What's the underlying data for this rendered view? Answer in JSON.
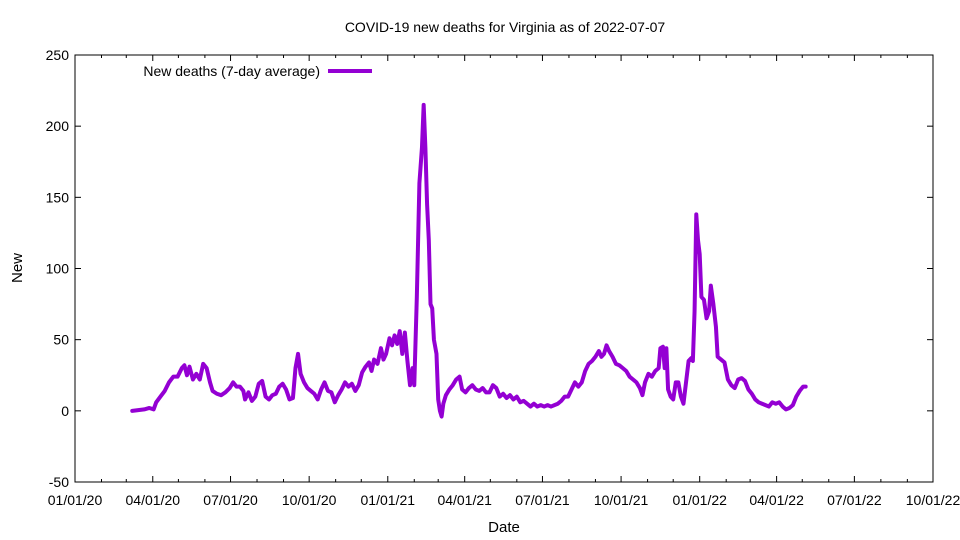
{
  "chart_data": {
    "type": "line",
    "title": "COVID-19 new deaths for Virginia as of 2022-07-07",
    "xlabel": "Date",
    "ylabel": "New",
    "ylim": [
      -50,
      250
    ],
    "yticks": [
      -50,
      0,
      50,
      100,
      150,
      200,
      250
    ],
    "xlim": [
      "2020-01-01",
      "2022-10-01"
    ],
    "xticks": [
      {
        "date": "2020-01-01",
        "label": "01/01/20"
      },
      {
        "date": "2020-04-01",
        "label": "04/01/20"
      },
      {
        "date": "2020-07-01",
        "label": "07/01/20"
      },
      {
        "date": "2020-10-01",
        "label": "10/01/20"
      },
      {
        "date": "2021-01-01",
        "label": "01/01/21"
      },
      {
        "date": "2021-04-01",
        "label": "04/01/21"
      },
      {
        "date": "2021-07-01",
        "label": "07/01/21"
      },
      {
        "date": "2021-10-01",
        "label": "10/01/21"
      },
      {
        "date": "2022-01-01",
        "label": "01/01/22"
      },
      {
        "date": "2022-04-01",
        "label": "04/01/22"
      },
      {
        "date": "2022-07-01",
        "label": "07/01/22"
      },
      {
        "date": "2022-10-01",
        "label": "10/01/22"
      }
    ],
    "legend_position": "top-left",
    "grid": false,
    "series": [
      {
        "name": "New deaths (7-day average)",
        "color": "#9400d3",
        "points": [
          [
            "2020-03-08",
            0
          ],
          [
            "2020-03-15",
            0.5
          ],
          [
            "2020-03-22",
            1
          ],
          [
            "2020-03-28",
            2
          ],
          [
            "2020-04-02",
            1
          ],
          [
            "2020-04-05",
            6
          ],
          [
            "2020-04-10",
            10
          ],
          [
            "2020-04-15",
            14
          ],
          [
            "2020-04-20",
            20
          ],
          [
            "2020-04-25",
            24
          ],
          [
            "2020-04-30",
            24
          ],
          [
            "2020-05-05",
            30
          ],
          [
            "2020-05-08",
            32
          ],
          [
            "2020-05-11",
            25
          ],
          [
            "2020-05-14",
            31
          ],
          [
            "2020-05-18",
            22
          ],
          [
            "2020-05-22",
            26
          ],
          [
            "2020-05-26",
            22
          ],
          [
            "2020-05-30",
            33
          ],
          [
            "2020-06-03",
            30
          ],
          [
            "2020-06-07",
            20
          ],
          [
            "2020-06-10",
            14
          ],
          [
            "2020-06-15",
            12
          ],
          [
            "2020-06-20",
            11
          ],
          [
            "2020-06-25",
            13
          ],
          [
            "2020-06-30",
            16
          ],
          [
            "2020-07-04",
            20
          ],
          [
            "2020-07-08",
            17
          ],
          [
            "2020-07-12",
            17
          ],
          [
            "2020-07-16",
            14
          ],
          [
            "2020-07-18",
            8
          ],
          [
            "2020-07-22",
            13
          ],
          [
            "2020-07-26",
            7
          ],
          [
            "2020-07-30",
            10
          ],
          [
            "2020-08-03",
            19
          ],
          [
            "2020-08-07",
            21
          ],
          [
            "2020-08-11",
            10
          ],
          [
            "2020-08-15",
            8
          ],
          [
            "2020-08-19",
            11
          ],
          [
            "2020-08-23",
            12
          ],
          [
            "2020-08-27",
            17
          ],
          [
            "2020-08-31",
            19
          ],
          [
            "2020-09-04",
            15
          ],
          [
            "2020-09-08",
            8
          ],
          [
            "2020-09-12",
            9
          ],
          [
            "2020-09-15",
            30
          ],
          [
            "2020-09-18",
            40
          ],
          [
            "2020-09-21",
            26
          ],
          [
            "2020-09-25",
            20
          ],
          [
            "2020-09-29",
            16
          ],
          [
            "2020-10-03",
            14
          ],
          [
            "2020-10-07",
            12
          ],
          [
            "2020-10-11",
            8
          ],
          [
            "2020-10-15",
            15
          ],
          [
            "2020-10-19",
            20
          ],
          [
            "2020-10-23",
            14
          ],
          [
            "2020-10-27",
            13
          ],
          [
            "2020-10-31",
            6
          ],
          [
            "2020-11-04",
            11
          ],
          [
            "2020-11-08",
            15
          ],
          [
            "2020-11-12",
            20
          ],
          [
            "2020-11-16",
            17
          ],
          [
            "2020-11-20",
            19
          ],
          [
            "2020-11-24",
            14
          ],
          [
            "2020-11-28",
            18
          ],
          [
            "2020-12-02",
            27
          ],
          [
            "2020-12-06",
            31
          ],
          [
            "2020-12-10",
            34
          ],
          [
            "2020-12-13",
            28
          ],
          [
            "2020-12-16",
            36
          ],
          [
            "2020-12-20",
            33
          ],
          [
            "2020-12-24",
            44
          ],
          [
            "2020-12-27",
            36
          ],
          [
            "2020-12-30",
            40
          ],
          [
            "2021-01-03",
            51
          ],
          [
            "2021-01-06",
            46
          ],
          [
            "2021-01-09",
            53
          ],
          [
            "2021-01-12",
            47
          ],
          [
            "2021-01-15",
            56
          ],
          [
            "2021-01-18",
            40
          ],
          [
            "2021-01-21",
            55
          ],
          [
            "2021-01-24",
            35
          ],
          [
            "2021-01-27",
            18
          ],
          [
            "2021-01-30",
            30
          ],
          [
            "2021-02-01",
            18
          ],
          [
            "2021-02-04",
            80
          ],
          [
            "2021-02-07",
            160
          ],
          [
            "2021-02-10",
            185
          ],
          [
            "2021-02-12",
            215
          ],
          [
            "2021-02-14",
            185
          ],
          [
            "2021-02-16",
            145
          ],
          [
            "2021-02-18",
            120
          ],
          [
            "2021-02-20",
            75
          ],
          [
            "2021-02-22",
            72
          ],
          [
            "2021-02-24",
            50
          ],
          [
            "2021-02-27",
            40
          ],
          [
            "2021-03-01",
            8
          ],
          [
            "2021-03-03",
            0
          ],
          [
            "2021-03-05",
            -4
          ],
          [
            "2021-03-07",
            5
          ],
          [
            "2021-03-10",
            11
          ],
          [
            "2021-03-14",
            15
          ],
          [
            "2021-03-18",
            18
          ],
          [
            "2021-03-22",
            22
          ],
          [
            "2021-03-26",
            24
          ],
          [
            "2021-03-29",
            15
          ],
          [
            "2021-04-02",
            13
          ],
          [
            "2021-04-06",
            16
          ],
          [
            "2021-04-10",
            18
          ],
          [
            "2021-04-14",
            15
          ],
          [
            "2021-04-18",
            14
          ],
          [
            "2021-04-22",
            16
          ],
          [
            "2021-04-26",
            13
          ],
          [
            "2021-04-30",
            13
          ],
          [
            "2021-05-04",
            18
          ],
          [
            "2021-05-08",
            16
          ],
          [
            "2021-05-12",
            10
          ],
          [
            "2021-05-16",
            12
          ],
          [
            "2021-05-20",
            9
          ],
          [
            "2021-05-24",
            11
          ],
          [
            "2021-05-28",
            8
          ],
          [
            "2021-06-01",
            10
          ],
          [
            "2021-06-05",
            6
          ],
          [
            "2021-06-09",
            7
          ],
          [
            "2021-06-13",
            5
          ],
          [
            "2021-06-17",
            3
          ],
          [
            "2021-06-21",
            5
          ],
          [
            "2021-06-25",
            3
          ],
          [
            "2021-06-29",
            4
          ],
          [
            "2021-07-03",
            3
          ],
          [
            "2021-07-07",
            4
          ],
          [
            "2021-07-11",
            3
          ],
          [
            "2021-07-15",
            4
          ],
          [
            "2021-07-19",
            5
          ],
          [
            "2021-07-23",
            7
          ],
          [
            "2021-07-27",
            10
          ],
          [
            "2021-07-31",
            10
          ],
          [
            "2021-08-04",
            15
          ],
          [
            "2021-08-08",
            20
          ],
          [
            "2021-08-12",
            17
          ],
          [
            "2021-08-16",
            20
          ],
          [
            "2021-08-20",
            28
          ],
          [
            "2021-08-24",
            33
          ],
          [
            "2021-08-28",
            35
          ],
          [
            "2021-09-01",
            38
          ],
          [
            "2021-09-05",
            42
          ],
          [
            "2021-09-08",
            38
          ],
          [
            "2021-09-11",
            40
          ],
          [
            "2021-09-14",
            46
          ],
          [
            "2021-09-17",
            42
          ],
          [
            "2021-09-21",
            38
          ],
          [
            "2021-09-25",
            33
          ],
          [
            "2021-09-29",
            32
          ],
          [
            "2021-10-03",
            30
          ],
          [
            "2021-10-07",
            28
          ],
          [
            "2021-10-11",
            24
          ],
          [
            "2021-10-15",
            22
          ],
          [
            "2021-10-19",
            20
          ],
          [
            "2021-10-23",
            16
          ],
          [
            "2021-10-26",
            11
          ],
          [
            "2021-10-29",
            20
          ],
          [
            "2021-11-02",
            26
          ],
          [
            "2021-11-06",
            24
          ],
          [
            "2021-11-10",
            28
          ],
          [
            "2021-11-14",
            30
          ],
          [
            "2021-11-16",
            44
          ],
          [
            "2021-11-19",
            45
          ],
          [
            "2021-11-21",
            30
          ],
          [
            "2021-11-23",
            44
          ],
          [
            "2021-11-25",
            15
          ],
          [
            "2021-11-28",
            10
          ],
          [
            "2021-12-01",
            8
          ],
          [
            "2021-12-04",
            20
          ],
          [
            "2021-12-07",
            20
          ],
          [
            "2021-12-10",
            10
          ],
          [
            "2021-12-13",
            5
          ],
          [
            "2021-12-16",
            20
          ],
          [
            "2021-12-19",
            35
          ],
          [
            "2021-12-22",
            37
          ],
          [
            "2021-12-24",
            35
          ],
          [
            "2021-12-26",
            70
          ],
          [
            "2021-12-28",
            138
          ],
          [
            "2021-12-30",
            120
          ],
          [
            "2022-01-01",
            110
          ],
          [
            "2022-01-03",
            80
          ],
          [
            "2022-01-06",
            78
          ],
          [
            "2022-01-09",
            65
          ],
          [
            "2022-01-12",
            70
          ],
          [
            "2022-01-14",
            88
          ],
          [
            "2022-01-17",
            75
          ],
          [
            "2022-01-20",
            59
          ],
          [
            "2022-01-22",
            38
          ],
          [
            "2022-01-26",
            36
          ],
          [
            "2022-01-30",
            34
          ],
          [
            "2022-02-03",
            22
          ],
          [
            "2022-02-07",
            18
          ],
          [
            "2022-02-11",
            16
          ],
          [
            "2022-02-15",
            22
          ],
          [
            "2022-02-19",
            23
          ],
          [
            "2022-02-23",
            21
          ],
          [
            "2022-02-27",
            15
          ],
          [
            "2022-03-03",
            12
          ],
          [
            "2022-03-07",
            8
          ],
          [
            "2022-03-11",
            6
          ],
          [
            "2022-03-15",
            5
          ],
          [
            "2022-03-19",
            4
          ],
          [
            "2022-03-23",
            3
          ],
          [
            "2022-03-27",
            6
          ],
          [
            "2022-03-31",
            5
          ],
          [
            "2022-04-04",
            6
          ],
          [
            "2022-04-08",
            3
          ],
          [
            "2022-04-12",
            1
          ],
          [
            "2022-04-16",
            2
          ],
          [
            "2022-04-20",
            4
          ],
          [
            "2022-04-24",
            10
          ],
          [
            "2022-04-28",
            14
          ],
          [
            "2022-05-02",
            17
          ],
          [
            "2022-05-05",
            17
          ]
        ]
      }
    ]
  }
}
